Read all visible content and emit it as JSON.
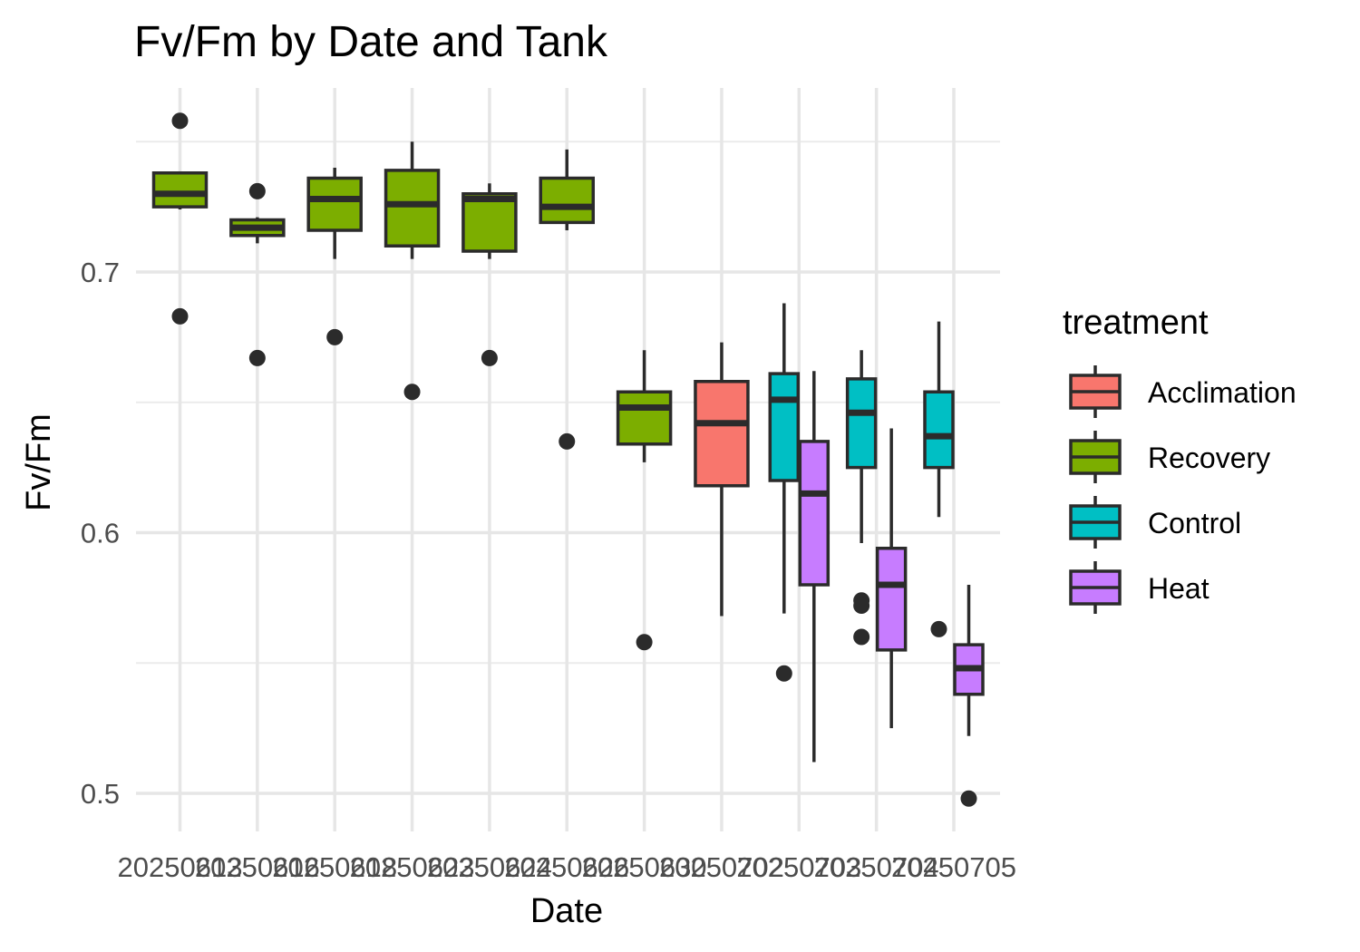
{
  "chart_data": {
    "type": "box",
    "title": "Fv/Fm by Date and Tank",
    "xlabel": "Date",
    "ylabel": "Fv/Fm",
    "ylim": [
      0.4925,
      0.7625
    ],
    "y_ticks": [
      0.5,
      0.6,
      0.7
    ],
    "y_tick_labels": [
      "0.5",
      "0.6",
      "0.7"
    ],
    "categories": [
      "20250613",
      "20250616",
      "20250618",
      "20250623",
      "20250624",
      "20250626",
      "20250630",
      "20250702",
      "20250703",
      "20250704",
      "20250705"
    ],
    "grid": true,
    "legend": {
      "title": "treatment",
      "position": "right",
      "entries": [
        {
          "name": "Acclimation",
          "color": "#F8766D"
        },
        {
          "name": "Recovery",
          "color": "#7CAE00"
        },
        {
          "name": "Control",
          "color": "#00BFC4"
        },
        {
          "name": "Heat",
          "color": "#C77CFF"
        }
      ]
    },
    "boxes": [
      {
        "category": "20250613",
        "treatment": "Recovery",
        "slot": "center",
        "lower_whisker": 0.724,
        "q1": 0.725,
        "median": 0.73,
        "q3": 0.738,
        "upper_whisker": 0.738,
        "outliers": [
          0.758,
          0.683
        ]
      },
      {
        "category": "20250616",
        "treatment": "Recovery",
        "slot": "center",
        "lower_whisker": 0.711,
        "q1": 0.714,
        "median": 0.717,
        "q3": 0.72,
        "upper_whisker": 0.721,
        "outliers": [
          0.731,
          0.667
        ]
      },
      {
        "category": "20250618",
        "treatment": "Recovery",
        "slot": "center",
        "lower_whisker": 0.705,
        "q1": 0.716,
        "median": 0.728,
        "q3": 0.736,
        "upper_whisker": 0.74,
        "outliers": [
          0.675
        ]
      },
      {
        "category": "20250623",
        "treatment": "Recovery",
        "slot": "center",
        "lower_whisker": 0.705,
        "q1": 0.71,
        "median": 0.726,
        "q3": 0.739,
        "upper_whisker": 0.75,
        "outliers": [
          0.654
        ]
      },
      {
        "category": "20250624",
        "treatment": "Recovery",
        "slot": "center",
        "lower_whisker": 0.705,
        "q1": 0.708,
        "median": 0.728,
        "q3": 0.73,
        "upper_whisker": 0.734,
        "outliers": [
          0.667
        ]
      },
      {
        "category": "20250626",
        "treatment": "Recovery",
        "slot": "center",
        "lower_whisker": 0.716,
        "q1": 0.719,
        "median": 0.725,
        "q3": 0.736,
        "upper_whisker": 0.747,
        "outliers": [
          0.635
        ]
      },
      {
        "category": "20250630",
        "treatment": "Recovery",
        "slot": "center",
        "lower_whisker": 0.627,
        "q1": 0.634,
        "median": 0.648,
        "q3": 0.654,
        "upper_whisker": 0.67,
        "outliers": [
          0.558
        ]
      },
      {
        "category": "20250702",
        "treatment": "Acclimation",
        "slot": "center",
        "lower_whisker": 0.568,
        "q1": 0.618,
        "median": 0.642,
        "q3": 0.658,
        "upper_whisker": 0.673,
        "outliers": []
      },
      {
        "category": "20250703",
        "treatment": "Control",
        "slot": "left",
        "lower_whisker": 0.569,
        "q1": 0.62,
        "median": 0.651,
        "q3": 0.661,
        "upper_whisker": 0.688,
        "outliers": [
          0.546
        ]
      },
      {
        "category": "20250703",
        "treatment": "Heat",
        "slot": "right",
        "lower_whisker": 0.512,
        "q1": 0.58,
        "median": 0.615,
        "q3": 0.635,
        "upper_whisker": 0.662,
        "outliers": []
      },
      {
        "category": "20250704",
        "treatment": "Control",
        "slot": "left",
        "lower_whisker": 0.596,
        "q1": 0.625,
        "median": 0.646,
        "q3": 0.659,
        "upper_whisker": 0.67,
        "outliers": [
          0.574,
          0.572,
          0.56
        ]
      },
      {
        "category": "20250704",
        "treatment": "Heat",
        "slot": "right",
        "lower_whisker": 0.525,
        "q1": 0.555,
        "median": 0.58,
        "q3": 0.594,
        "upper_whisker": 0.64,
        "outliers": []
      },
      {
        "category": "20250705",
        "treatment": "Control",
        "slot": "left",
        "lower_whisker": 0.606,
        "q1": 0.625,
        "median": 0.637,
        "q3": 0.654,
        "upper_whisker": 0.681,
        "outliers": [
          0.563
        ]
      },
      {
        "category": "20250705",
        "treatment": "Heat",
        "slot": "right",
        "lower_whisker": 0.522,
        "q1": 0.538,
        "median": 0.548,
        "q3": 0.557,
        "upper_whisker": 0.58,
        "outliers": [
          0.498
        ]
      }
    ]
  }
}
